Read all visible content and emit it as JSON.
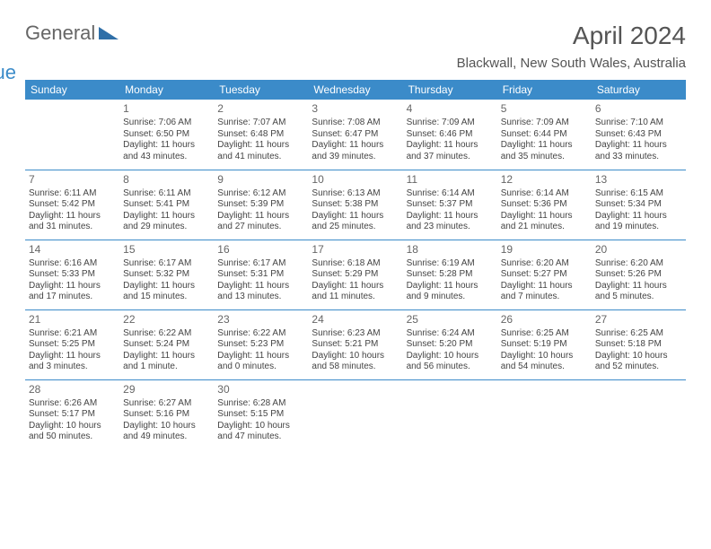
{
  "logo": {
    "text1": "General",
    "text2": "Blue"
  },
  "title": "April 2024",
  "location": "Blackwall, New South Wales, Australia",
  "dayHeaders": [
    "Sunday",
    "Monday",
    "Tuesday",
    "Wednesday",
    "Thursday",
    "Friday",
    "Saturday"
  ],
  "colors": {
    "accent": "#3b8bc9",
    "text": "#444",
    "bg": "#ffffff"
  },
  "weeks": [
    [
      null,
      {
        "n": "1",
        "sr": "7:06 AM",
        "ss": "6:50 PM",
        "dl": "11 hours and 43 minutes."
      },
      {
        "n": "2",
        "sr": "7:07 AM",
        "ss": "6:48 PM",
        "dl": "11 hours and 41 minutes."
      },
      {
        "n": "3",
        "sr": "7:08 AM",
        "ss": "6:47 PM",
        "dl": "11 hours and 39 minutes."
      },
      {
        "n": "4",
        "sr": "7:09 AM",
        "ss": "6:46 PM",
        "dl": "11 hours and 37 minutes."
      },
      {
        "n": "5",
        "sr": "7:09 AM",
        "ss": "6:44 PM",
        "dl": "11 hours and 35 minutes."
      },
      {
        "n": "6",
        "sr": "7:10 AM",
        "ss": "6:43 PM",
        "dl": "11 hours and 33 minutes."
      }
    ],
    [
      {
        "n": "7",
        "sr": "6:11 AM",
        "ss": "5:42 PM",
        "dl": "11 hours and 31 minutes."
      },
      {
        "n": "8",
        "sr": "6:11 AM",
        "ss": "5:41 PM",
        "dl": "11 hours and 29 minutes."
      },
      {
        "n": "9",
        "sr": "6:12 AM",
        "ss": "5:39 PM",
        "dl": "11 hours and 27 minutes."
      },
      {
        "n": "10",
        "sr": "6:13 AM",
        "ss": "5:38 PM",
        "dl": "11 hours and 25 minutes."
      },
      {
        "n": "11",
        "sr": "6:14 AM",
        "ss": "5:37 PM",
        "dl": "11 hours and 23 minutes."
      },
      {
        "n": "12",
        "sr": "6:14 AM",
        "ss": "5:36 PM",
        "dl": "11 hours and 21 minutes."
      },
      {
        "n": "13",
        "sr": "6:15 AM",
        "ss": "5:34 PM",
        "dl": "11 hours and 19 minutes."
      }
    ],
    [
      {
        "n": "14",
        "sr": "6:16 AM",
        "ss": "5:33 PM",
        "dl": "11 hours and 17 minutes."
      },
      {
        "n": "15",
        "sr": "6:17 AM",
        "ss": "5:32 PM",
        "dl": "11 hours and 15 minutes."
      },
      {
        "n": "16",
        "sr": "6:17 AM",
        "ss": "5:31 PM",
        "dl": "11 hours and 13 minutes."
      },
      {
        "n": "17",
        "sr": "6:18 AM",
        "ss": "5:29 PM",
        "dl": "11 hours and 11 minutes."
      },
      {
        "n": "18",
        "sr": "6:19 AM",
        "ss": "5:28 PM",
        "dl": "11 hours and 9 minutes."
      },
      {
        "n": "19",
        "sr": "6:20 AM",
        "ss": "5:27 PM",
        "dl": "11 hours and 7 minutes."
      },
      {
        "n": "20",
        "sr": "6:20 AM",
        "ss": "5:26 PM",
        "dl": "11 hours and 5 minutes."
      }
    ],
    [
      {
        "n": "21",
        "sr": "6:21 AM",
        "ss": "5:25 PM",
        "dl": "11 hours and 3 minutes."
      },
      {
        "n": "22",
        "sr": "6:22 AM",
        "ss": "5:24 PM",
        "dl": "11 hours and 1 minute."
      },
      {
        "n": "23",
        "sr": "6:22 AM",
        "ss": "5:23 PM",
        "dl": "11 hours and 0 minutes."
      },
      {
        "n": "24",
        "sr": "6:23 AM",
        "ss": "5:21 PM",
        "dl": "10 hours and 58 minutes."
      },
      {
        "n": "25",
        "sr": "6:24 AM",
        "ss": "5:20 PM",
        "dl": "10 hours and 56 minutes."
      },
      {
        "n": "26",
        "sr": "6:25 AM",
        "ss": "5:19 PM",
        "dl": "10 hours and 54 minutes."
      },
      {
        "n": "27",
        "sr": "6:25 AM",
        "ss": "5:18 PM",
        "dl": "10 hours and 52 minutes."
      }
    ],
    [
      {
        "n": "28",
        "sr": "6:26 AM",
        "ss": "5:17 PM",
        "dl": "10 hours and 50 minutes."
      },
      {
        "n": "29",
        "sr": "6:27 AM",
        "ss": "5:16 PM",
        "dl": "10 hours and 49 minutes."
      },
      {
        "n": "30",
        "sr": "6:28 AM",
        "ss": "5:15 PM",
        "dl": "10 hours and 47 minutes."
      },
      null,
      null,
      null,
      null
    ]
  ],
  "labels": {
    "sunrise": "Sunrise:",
    "sunset": "Sunset:",
    "daylight": "Daylight:"
  }
}
